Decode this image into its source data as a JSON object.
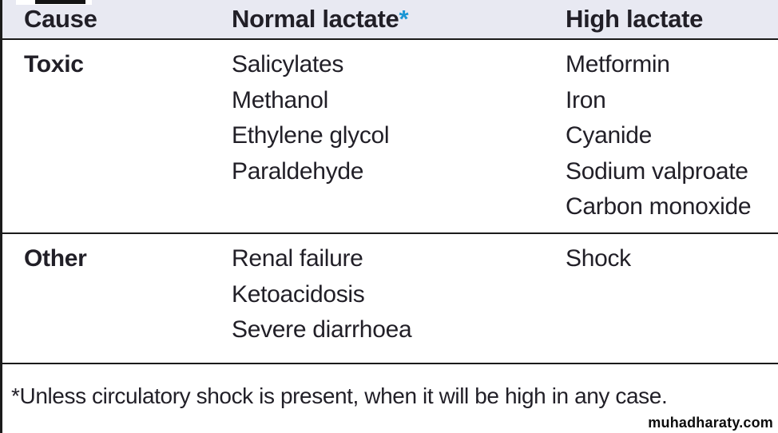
{
  "colors": {
    "header-bg": "#e8e9f2",
    "text": "#211f27",
    "accent-blue": "#1b96d4",
    "border": "#1b1b1b",
    "page-bg": "#ffffff"
  },
  "table": {
    "headers": {
      "cause": "Cause",
      "normal_lactate": "Normal lactate",
      "normal_lactate_note_marker": "*",
      "high_lactate": "High lactate"
    },
    "rows": [
      {
        "cause": "Toxic",
        "normal_lactate": [
          "Salicylates",
          "Methanol",
          "Ethylene glycol",
          "Paraldehyde"
        ],
        "high_lactate": [
          "Metformin",
          "Iron",
          "Cyanide",
          "Sodium valproate",
          "Carbon monoxide"
        ]
      },
      {
        "cause": "Other",
        "normal_lactate": [
          "Renal failure",
          "Ketoacidosis",
          "Severe diarrhoea"
        ],
        "high_lactate": [
          "Shock"
        ]
      }
    ],
    "footnote": "*Unless circulatory shock is present, when it will be high in any case."
  },
  "watermark": "muhadharaty.com"
}
